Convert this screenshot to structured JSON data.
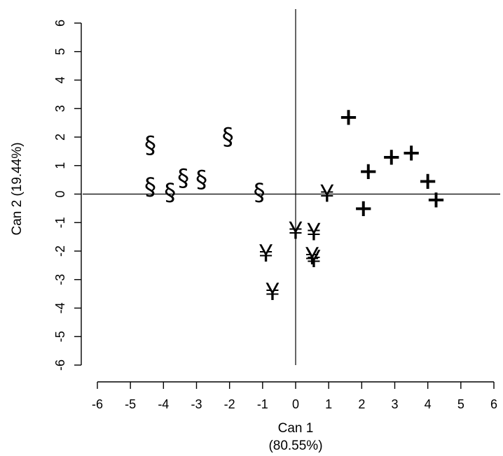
{
  "chart_data": {
    "type": "scatter",
    "title": "",
    "xlabel": "Can 1",
    "xlabel_sub": "(80.55%)",
    "ylabel": "Can 2 (19.44%)",
    "xlim": [
      -6,
      6
    ],
    "ylim": [
      -6,
      6
    ],
    "x_ticks": [
      -6,
      -5,
      -4,
      -3,
      -2,
      -1,
      0,
      1,
      2,
      3,
      4,
      5,
      6
    ],
    "y_ticks": [
      -6,
      -5,
      -4,
      -3,
      -2,
      -1,
      0,
      1,
      2,
      3,
      4,
      5,
      6
    ],
    "x_tick_labels": [
      "-6",
      "-5",
      "-4",
      "-3",
      "-2",
      "-1",
      "0",
      "1",
      "2",
      "3",
      "4",
      "5",
      "6"
    ],
    "y_tick_labels": [
      "-6",
      "-5",
      "-4",
      "-3",
      "-2",
      "-1",
      "0",
      "1",
      "2",
      "3",
      "4",
      "5",
      "6"
    ],
    "reference_lines": {
      "x": 0,
      "y": 0
    },
    "grid": false,
    "series": [
      {
        "symbol": "§",
        "points": [
          {
            "x": -4.4,
            "y": 1.7
          },
          {
            "x": -4.4,
            "y": 0.25
          },
          {
            "x": -3.8,
            "y": 0.05
          },
          {
            "x": -3.4,
            "y": 0.55
          },
          {
            "x": -2.85,
            "y": 0.5
          },
          {
            "x": -2.05,
            "y": 2.0
          },
          {
            "x": -1.1,
            "y": 0.05
          }
        ]
      },
      {
        "symbol": "¥",
        "points": [
          {
            "x": 0.95,
            "y": 0.0
          },
          {
            "x": 0.0,
            "y": -1.3
          },
          {
            "x": 0.55,
            "y": -1.35
          },
          {
            "x": -0.9,
            "y": -2.1
          },
          {
            "x": 0.5,
            "y": -2.2
          },
          {
            "x": 0.55,
            "y": -2.3
          },
          {
            "x": -0.7,
            "y": -3.45
          }
        ]
      },
      {
        "symbol": "+",
        "points": [
          {
            "x": 1.6,
            "y": 2.7
          },
          {
            "x": 2.2,
            "y": 0.8
          },
          {
            "x": 2.05,
            "y": -0.5
          },
          {
            "x": 2.9,
            "y": 1.3
          },
          {
            "x": 3.5,
            "y": 1.45
          },
          {
            "x": 4.0,
            "y": 0.45
          },
          {
            "x": 4.25,
            "y": -0.2
          }
        ]
      }
    ]
  }
}
